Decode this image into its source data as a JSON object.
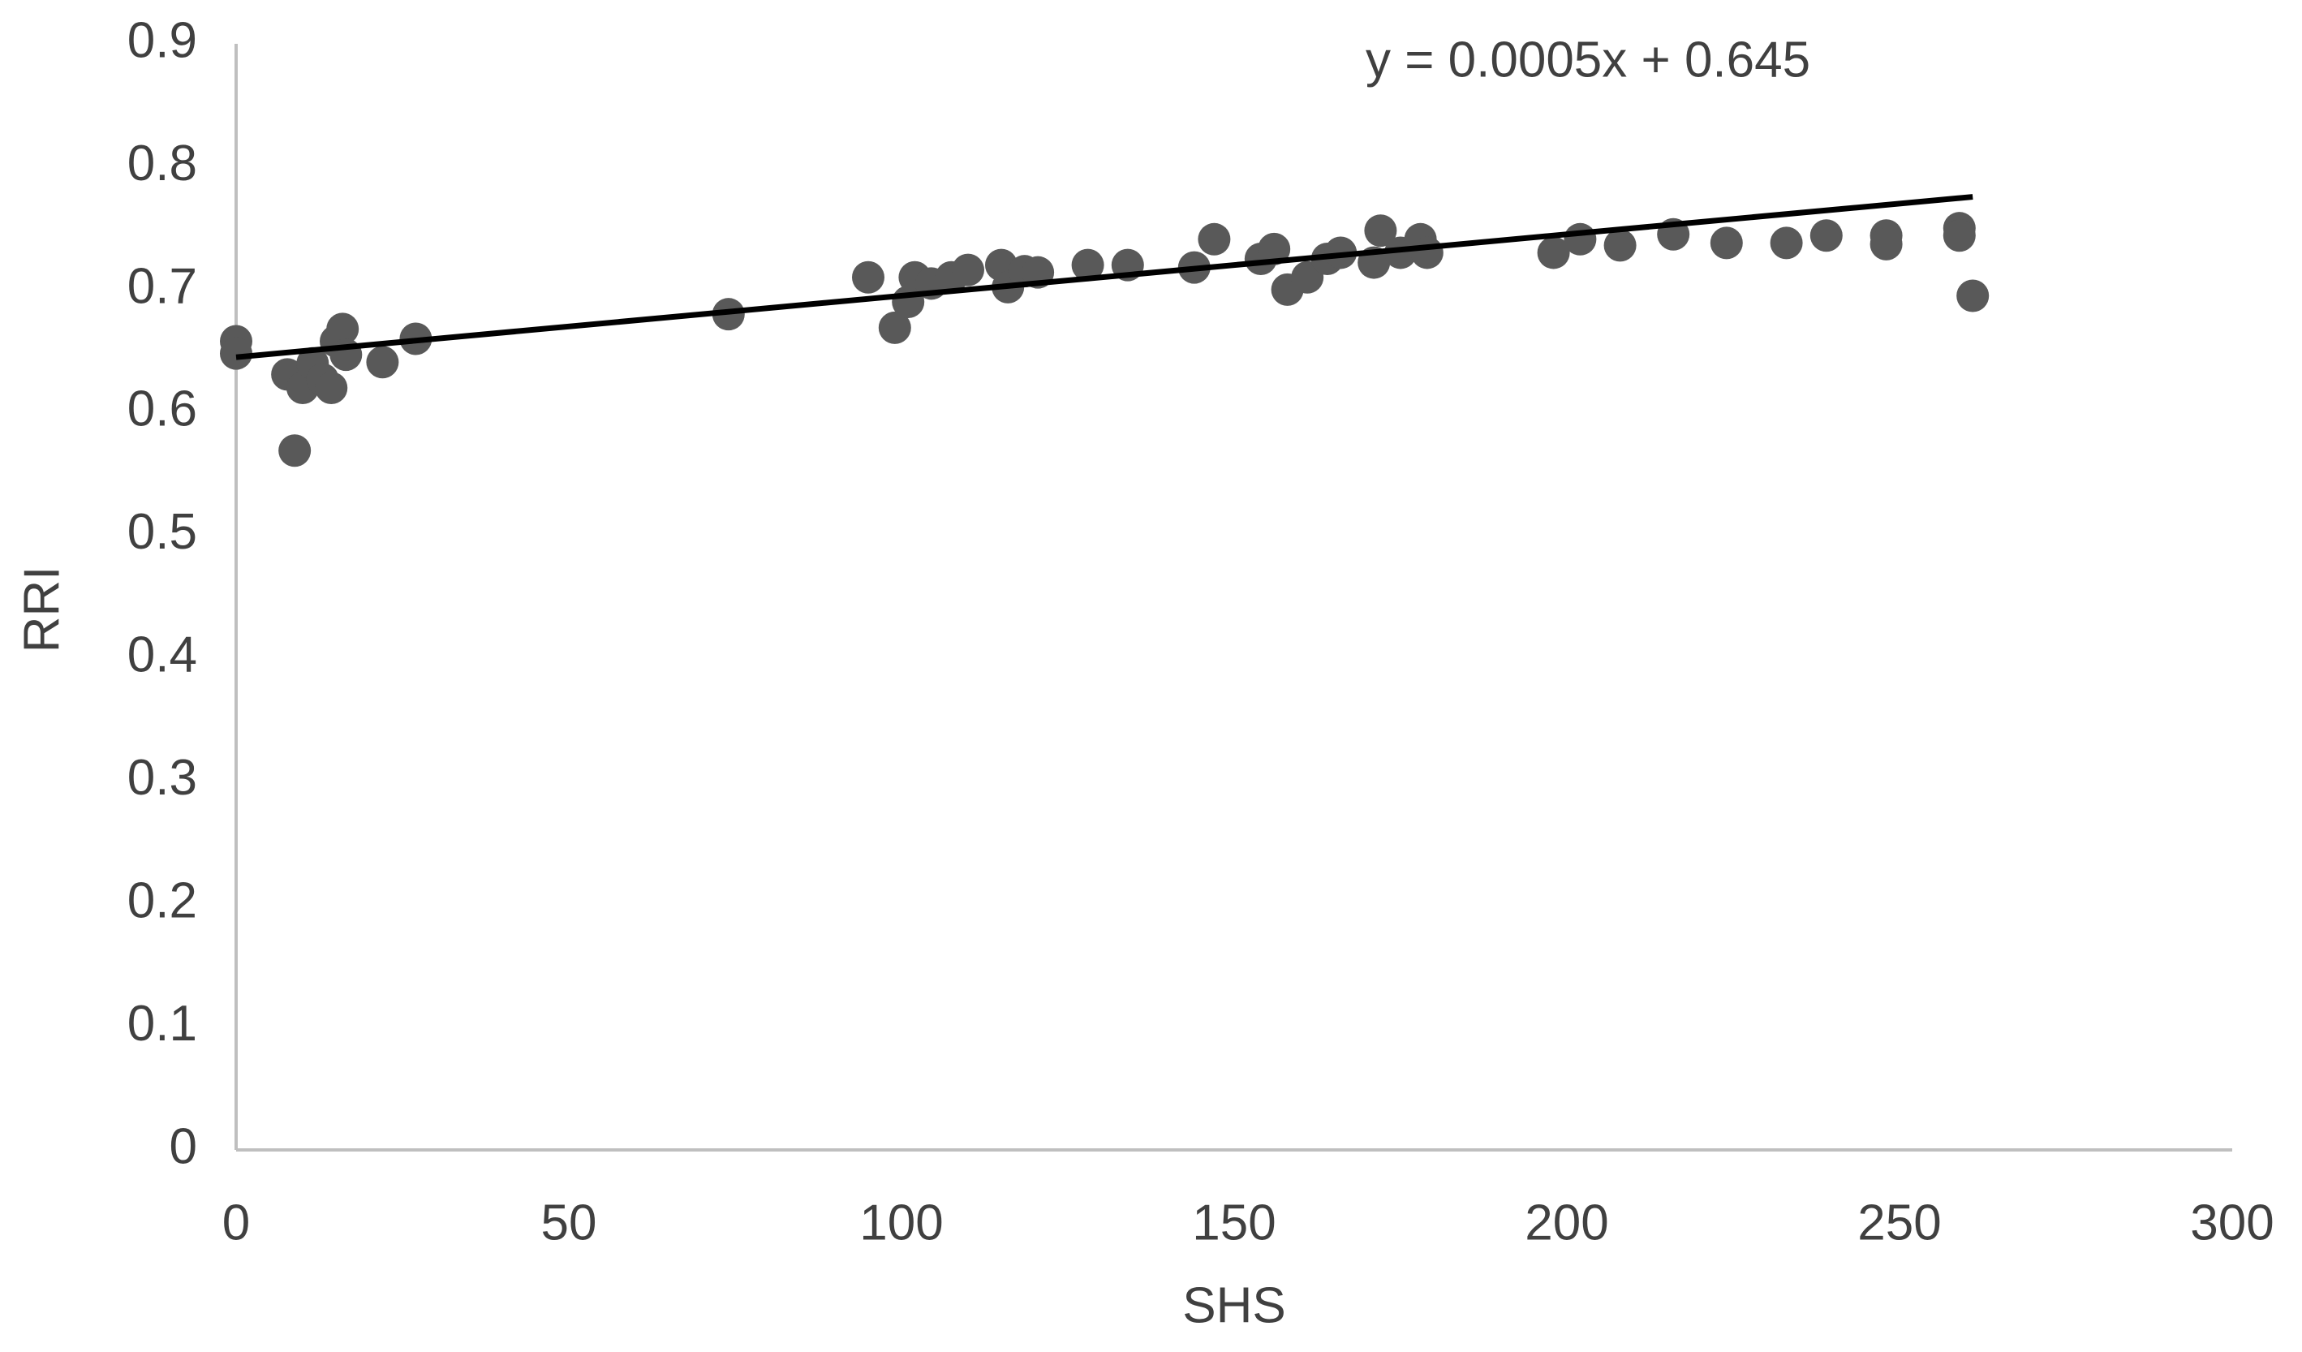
{
  "chart_data": {
    "type": "scatter",
    "x_label": "SHS",
    "y_label": "RRI",
    "color": "#595959",
    "x": [
      0,
      0,
      7.7,
      8.8,
      10,
      11.5,
      13,
      14.3,
      15,
      16,
      16.5,
      22,
      27,
      74,
      95,
      99,
      101,
      102,
      104.5,
      107.5,
      110,
      115,
      116,
      118.5,
      120.5,
      128,
      134,
      144,
      147,
      154,
      156,
      158,
      161,
      164,
      166,
      171,
      172,
      175,
      178,
      179,
      198,
      202,
      208,
      216,
      224,
      233,
      239,
      248,
      248,
      259,
      259,
      261
    ],
    "values": [
      0.658,
      0.648,
      0.631,
      0.569,
      0.62,
      0.64,
      0.627,
      0.62,
      0.658,
      0.668,
      0.647,
      0.641,
      0.66,
      0.68,
      0.71,
      0.669,
      0.69,
      0.71,
      0.705,
      0.71,
      0.716,
      0.72,
      0.702,
      0.715,
      0.714,
      0.72,
      0.72,
      0.718,
      0.741,
      0.725,
      0.733,
      0.7,
      0.71,
      0.725,
      0.73,
      0.722,
      0.748,
      0.73,
      0.741,
      0.73,
      0.73,
      0.741,
      0.736,
      0.745,
      0.738,
      0.738,
      0.744,
      0.744,
      0.737,
      0.75,
      0.744,
      0.695
    ],
    "trendline": {
      "label": "y = 0.0005x + 0.645",
      "slope": 0.0005,
      "intercept": 0.645,
      "color": "#000000"
    },
    "xlim": [
      0,
      300
    ],
    "xticks": [
      0,
      50,
      100,
      150,
      200,
      250,
      300
    ],
    "ylim": [
      0,
      0.9
    ],
    "yticks": [
      0,
      0.1,
      0.2,
      0.3,
      0.4,
      0.5,
      0.6,
      0.7,
      0.8,
      0.9
    ],
    "grid": false
  }
}
